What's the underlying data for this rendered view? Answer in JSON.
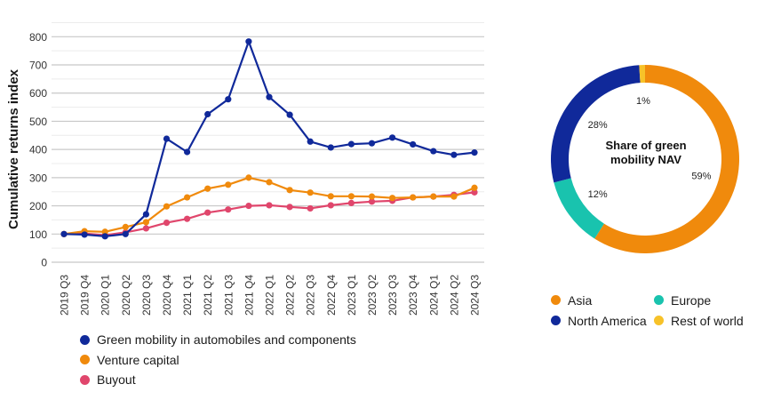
{
  "chart_data": [
    {
      "type": "line",
      "title": "",
      "xlabel": "",
      "ylabel": "Cumulative returns index",
      "ylim": [
        0,
        850
      ],
      "yticks": [
        0,
        100,
        200,
        300,
        400,
        500,
        600,
        700,
        800
      ],
      "grid": true,
      "legend_position": "bottom",
      "x": [
        "2019 Q3",
        "2019 Q4",
        "2020 Q1",
        "2020 Q2",
        "2020 Q3",
        "2020 Q4",
        "2021 Q1",
        "2021 Q2",
        "2021 Q3",
        "2021 Q4",
        "2022 Q1",
        "2022 Q2",
        "2022 Q3",
        "2022 Q4",
        "2023 Q1",
        "2023 Q2",
        "2023 Q3",
        "2023 Q4",
        "2024 Q1",
        "2024 Q2",
        "2024 Q3"
      ],
      "series": [
        {
          "name": "Green mobility in automobiles and components",
          "color": "#10299a",
          "values": [
            100,
            98,
            92,
            100,
            170,
            438,
            391,
            525,
            578,
            783,
            586,
            523,
            428,
            407,
            419,
            422,
            442,
            418,
            394,
            381,
            389
          ]
        },
        {
          "name": "Venture capital",
          "color": "#f08a0c",
          "values": [
            100,
            110,
            108,
            125,
            142,
            198,
            230,
            261,
            275,
            300,
            284,
            256,
            247,
            234,
            234,
            233,
            228,
            230,
            233,
            233,
            264
          ]
        },
        {
          "name": "Buyout",
          "color": "#e0466c",
          "values": [
            100,
            102,
            96,
            106,
            120,
            140,
            154,
            176,
            187,
            200,
            202,
            196,
            191,
            202,
            210,
            215,
            218,
            230,
            233,
            239,
            248
          ]
        }
      ]
    },
    {
      "type": "pie",
      "donut": true,
      "title": "Share of green mobility NAV",
      "title_lines": [
        "Share of green",
        "mobility NAV"
      ],
      "legend_position": "bottom",
      "slices": [
        {
          "name": "Asia",
          "value": 59,
          "label": "59%",
          "color": "#f08a0c"
        },
        {
          "name": "Europe",
          "value": 12,
          "label": "12%",
          "color": "#19c3ae"
        },
        {
          "name": "North America",
          "value": 28,
          "label": "28%",
          "color": "#10299a"
        },
        {
          "name": "Rest of world",
          "value": 1,
          "label": "1%",
          "color": "#f7c229"
        }
      ],
      "legend_order": [
        "Asia",
        "Europe",
        "North America",
        "Rest of world"
      ]
    }
  ]
}
